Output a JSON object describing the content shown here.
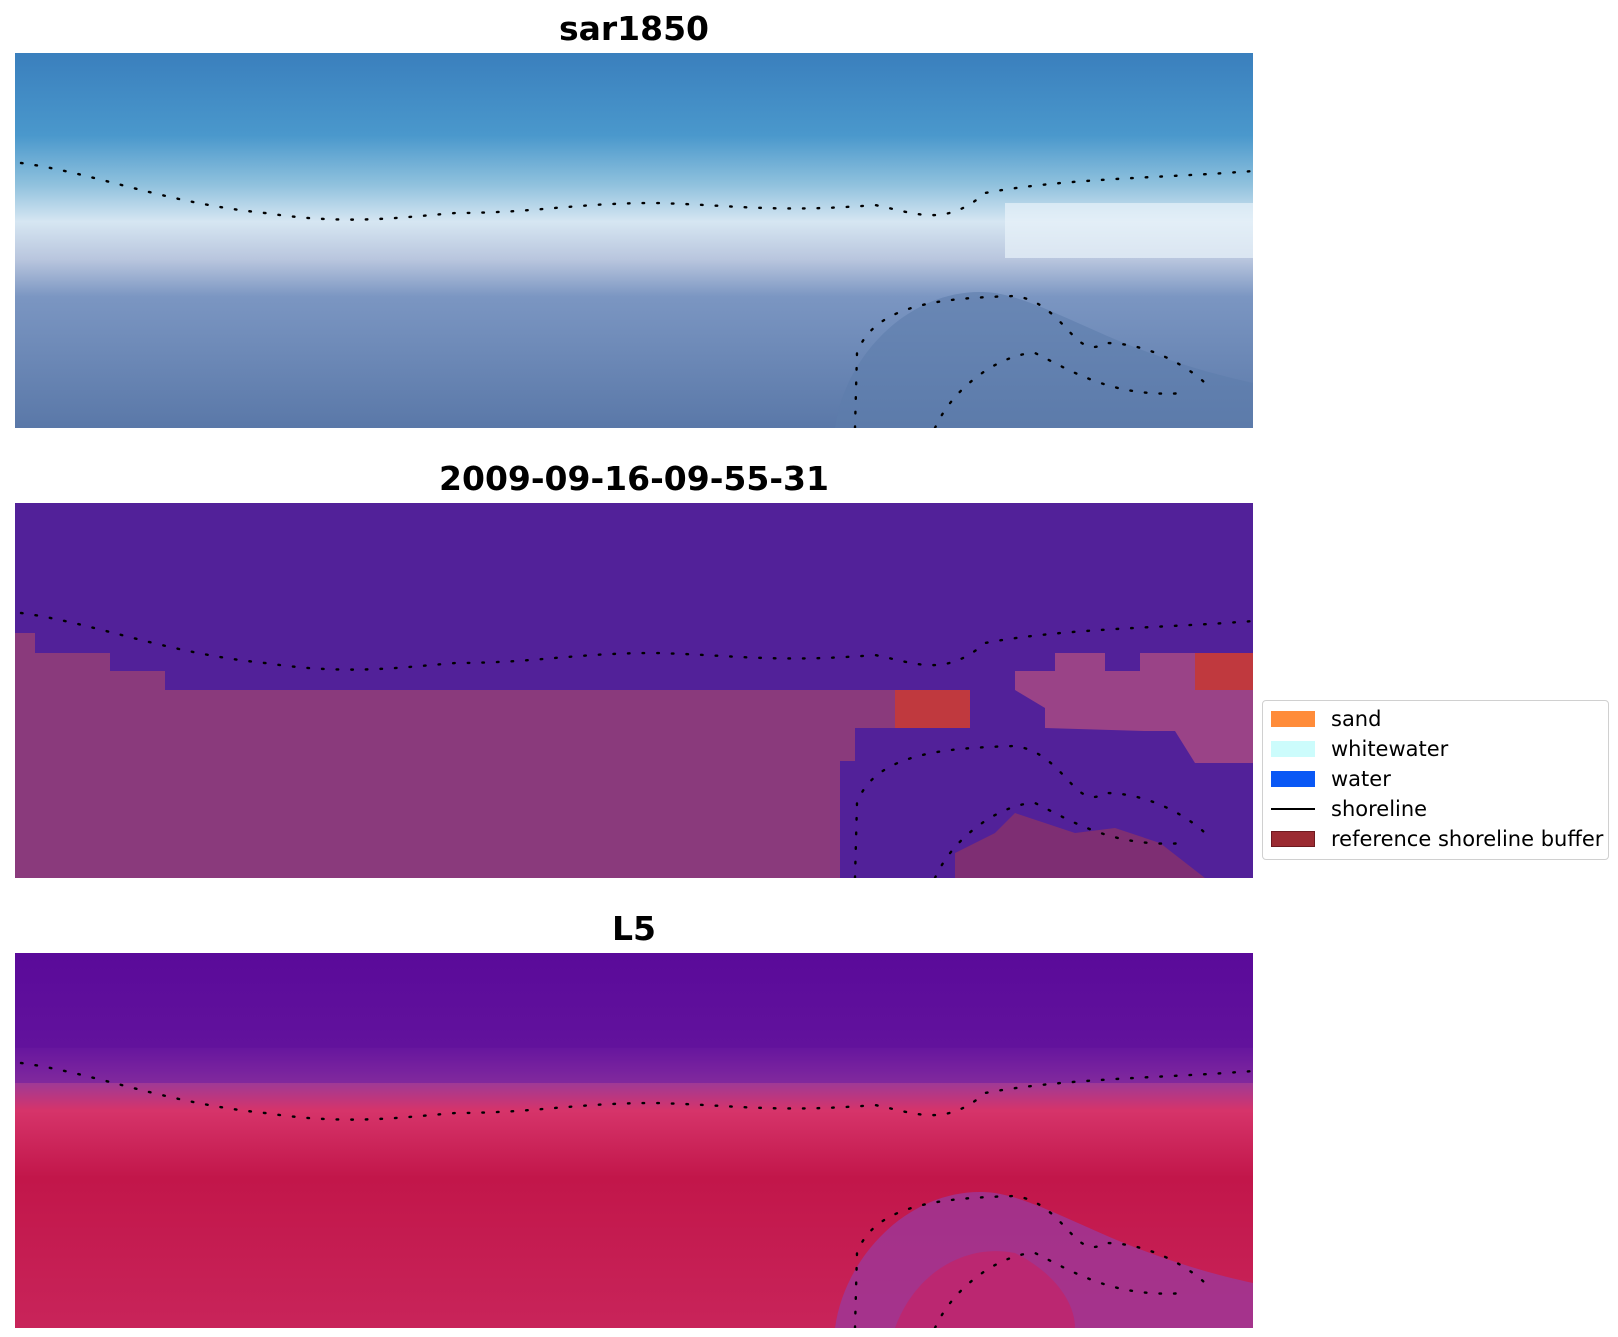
{
  "panels": [
    {
      "title": "sar1850",
      "kind": "rgb"
    },
    {
      "title": "2009-09-16-09-55-31",
      "kind": "classification"
    },
    {
      "title": "L5",
      "kind": "index"
    }
  ],
  "legend": {
    "items": [
      {
        "label": "sand",
        "type": "patch",
        "color": "#ff8c3a"
      },
      {
        "label": "whitewater",
        "type": "patch",
        "color": "#ccfcfc"
      },
      {
        "label": "water",
        "type": "patch",
        "color": "#0a58f5"
      },
      {
        "label": "shoreline",
        "type": "line",
        "color": "#000000"
      },
      {
        "label": "reference shoreline buffer",
        "type": "patch",
        "color": "#9b2b32"
      }
    ]
  },
  "colors": {
    "classified_water": "#522199",
    "classified_land": "#8a3a7c",
    "reference_buffer": "#c0393e",
    "index_low": "#5a0a9a",
    "index_high": "#c0103a"
  }
}
